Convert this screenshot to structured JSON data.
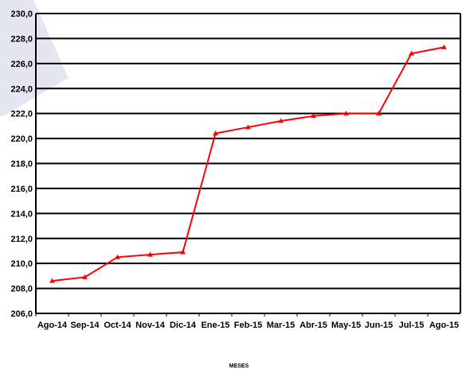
{
  "chart_data": {
    "type": "line",
    "title": "",
    "xlabel": "MESES",
    "ylabel": "",
    "ylim": [
      206.0,
      230.0
    ],
    "ytick_step": 2.0,
    "ytick_labels": [
      "206,0",
      "208,0",
      "210,0",
      "212,0",
      "214,0",
      "216,0",
      "218,0",
      "220,0",
      "222,0",
      "224,0",
      "226,0",
      "228,0",
      "230,0"
    ],
    "grid": true,
    "legend": "none",
    "categories": [
      "Ago-14",
      "Sep-14",
      "Oct-14",
      "Nov-14",
      "Dic-14",
      "Ene-15",
      "Feb-15",
      "Mar-15",
      "Abr-15",
      "May-15",
      "Jun-15",
      "Jul-15",
      "Ago-15"
    ],
    "series": [
      {
        "color": "#ff0000",
        "marker": "triangle",
        "values": [
          208.6,
          208.9,
          210.5,
          210.7,
          210.9,
          220.4,
          220.9,
          221.4,
          221.8,
          222.0,
          222.0,
          226.8,
          227.3
        ]
      }
    ],
    "colors": {
      "line": "#ff0000",
      "grid": "#000000",
      "decor": "#e6e6f2"
    }
  }
}
